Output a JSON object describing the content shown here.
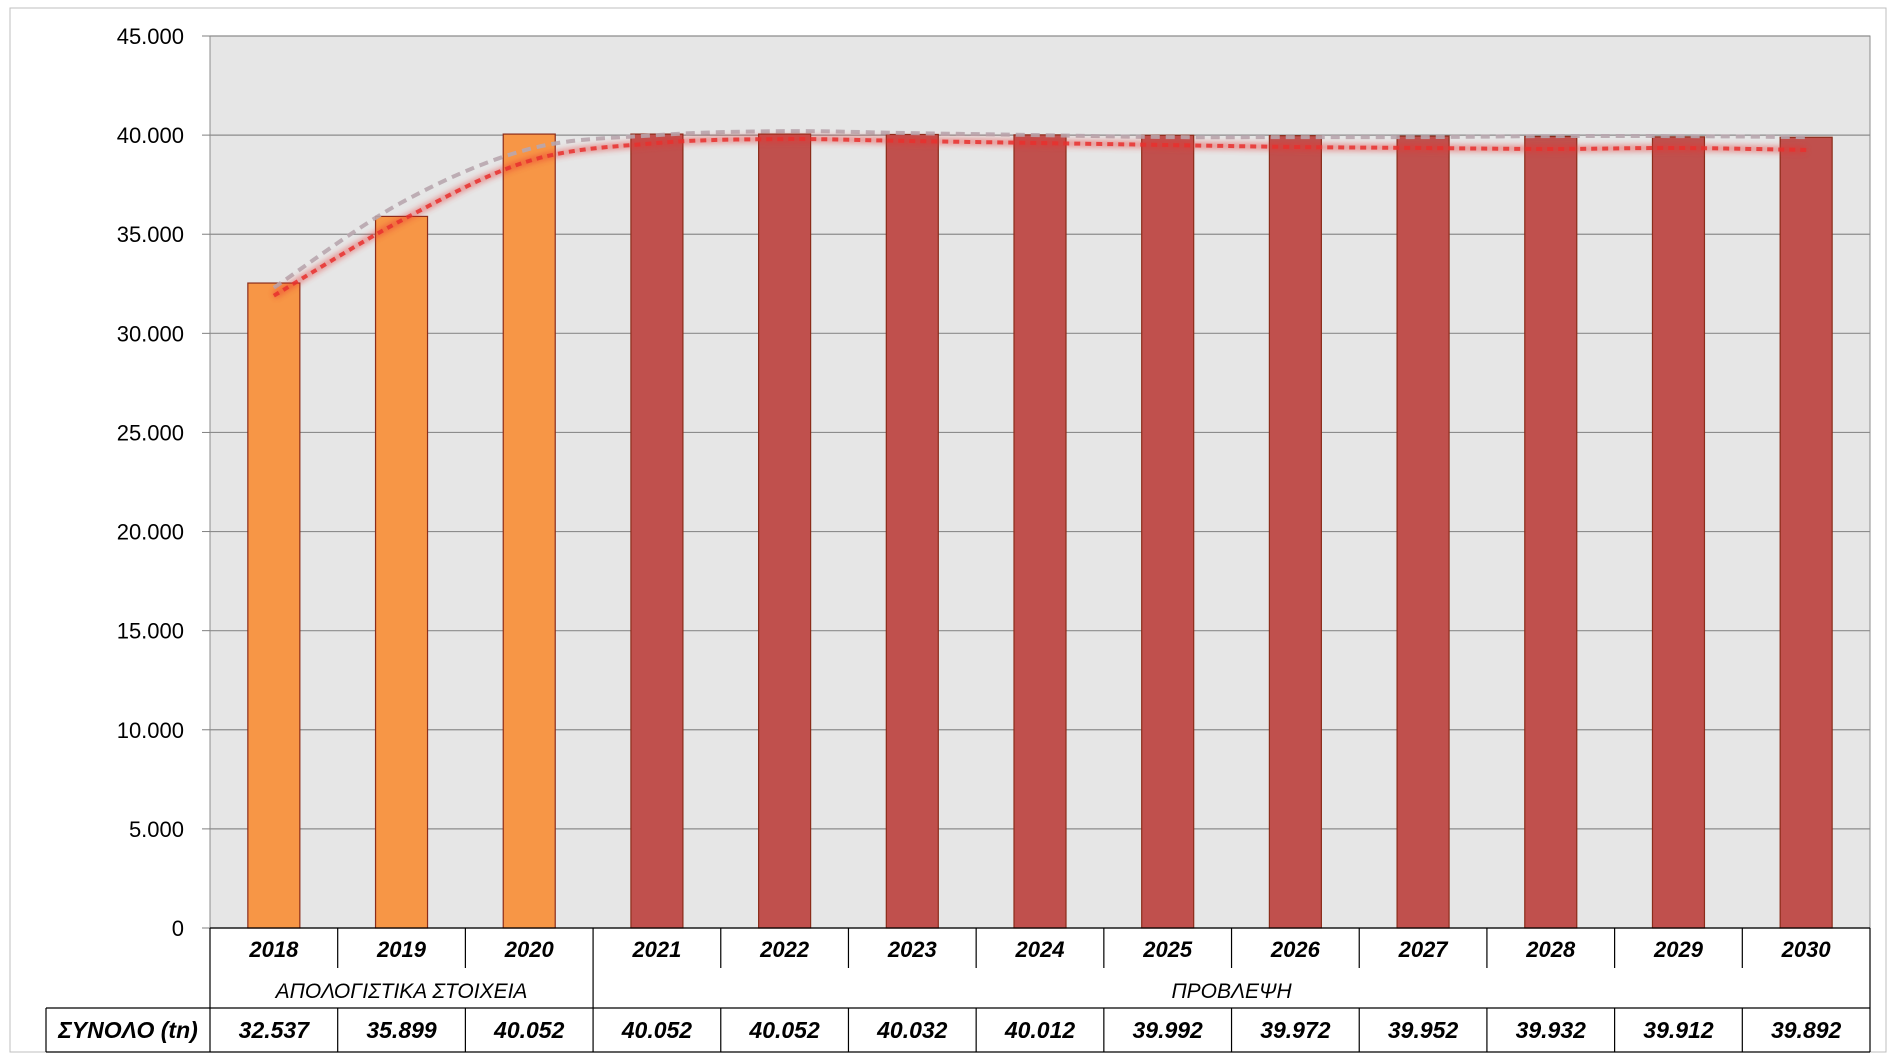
{
  "chart_data": {
    "type": "bar",
    "categories": [
      "2018",
      "2019",
      "2020",
      "2021",
      "2022",
      "2023",
      "2024",
      "2025",
      "2026",
      "2027",
      "2028",
      "2029",
      "2030"
    ],
    "values": [
      32537,
      35899,
      40052,
      40052,
      40052,
      40032,
      40012,
      39992,
      39972,
      39952,
      39932,
      39912,
      39892
    ],
    "value_labels": [
      "32.537",
      "35.899",
      "40.052",
      "40.052",
      "40.052",
      "40.032",
      "40.012",
      "39.992",
      "39.972",
      "39.952",
      "39.932",
      "39.912",
      "39.892"
    ],
    "groups": [
      {
        "label": "ΑΠΟΛΟΓΙΣΤΙΚΑ ΣΤΟΙΧΕΙΑ",
        "start": 0,
        "end": 2,
        "color": "#F79646"
      },
      {
        "label": "ΠΡΟΒΛΕΨΗ",
        "start": 3,
        "end": 12,
        "color": "#C0504D"
      }
    ],
    "table_row_label": "ΣΥΝΟΛΟ (tn)",
    "ylim": [
      0,
      45000
    ],
    "yticks": [
      0,
      5000,
      10000,
      15000,
      20000,
      25000,
      30000,
      35000,
      40000,
      45000
    ],
    "ytick_labels": [
      "0",
      "5.000",
      "10.000",
      "15.000",
      "20.000",
      "25.000",
      "30.000",
      "35.000",
      "40.000",
      "45.000"
    ],
    "grid": true,
    "plot_background": "#E6E6E6",
    "trendlines": [
      {
        "style": "dashed",
        "color": "#B8A6AE",
        "y": [
          32300,
          36600,
          39300,
          40000,
          40200,
          40100,
          40000,
          39900,
          39900,
          39900,
          39950,
          39950,
          39900
        ]
      },
      {
        "style": "dotted-glow",
        "color": "#E8302E",
        "y": [
          31900,
          35700,
          38700,
          39600,
          39800,
          39700,
          39600,
          39500,
          39400,
          39350,
          39300,
          39350,
          39250
        ]
      }
    ]
  }
}
